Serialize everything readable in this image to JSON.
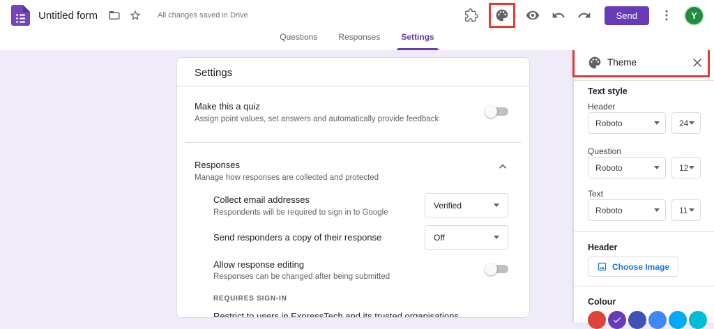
{
  "topbar": {
    "title": "Untitled form",
    "saved_status": "All changes saved in Drive",
    "send_label": "Send",
    "avatar_initial": "Y"
  },
  "tabs": [
    {
      "label": "Questions",
      "active": false
    },
    {
      "label": "Responses",
      "active": false
    },
    {
      "label": "Settings",
      "active": true
    }
  ],
  "settings_card": {
    "title": "Settings",
    "quiz": {
      "title": "Make this a quiz",
      "desc": "Assign point values, set answers and automatically provide feedback",
      "toggle_on": false
    },
    "responses_section": {
      "title": "Responses",
      "desc": "Manage how responses are collected and protected",
      "collapsed": false
    },
    "rows": [
      {
        "title": "Collect email addresses",
        "desc": "Respondents will be required to sign in to Google",
        "value": "Verified"
      },
      {
        "title": "Send responders a copy of their response",
        "value": "Off"
      },
      {
        "title": "Allow response editing",
        "desc": "Responses can be changed after being submitted",
        "toggle_on": false
      }
    ],
    "requires_signin": "REQUIRES SIGN-IN",
    "restrict_text": "Restrict to users in ExpressTech and its trusted organisations"
  },
  "theme_panel": {
    "title": "Theme",
    "text_style_label": "Text style",
    "fonts": [
      {
        "label": "Header",
        "font": "Roboto",
        "size": "24"
      },
      {
        "label": "Question",
        "font": "Roboto",
        "size": "12"
      },
      {
        "label": "Text",
        "font": "Roboto",
        "size": "11"
      }
    ],
    "header_section_label": "Header",
    "choose_image_label": "Choose Image",
    "colour_label": "Colour",
    "colors": [
      "#db4437",
      "#673ab7",
      "#3f51b5",
      "#4285f4",
      "#03a9f4",
      "#00bcd4"
    ],
    "selected_color_index": 1
  },
  "icons": {
    "addons": "puzzle-piece",
    "theme": "palette",
    "preview": "eye",
    "undo": "undo-arrow",
    "redo": "redo-arrow",
    "more": "kebab-vertical",
    "folder": "move-folder",
    "star": "star-outline",
    "collapse": "chevron-up",
    "close": "x",
    "choose_image": "image",
    "selected_check": "check"
  },
  "colors": {
    "accent_purple": "#673ab7",
    "highlight_red": "#e53935",
    "avatar_green": "#1e8e3e",
    "background": "#f0ebf8"
  }
}
